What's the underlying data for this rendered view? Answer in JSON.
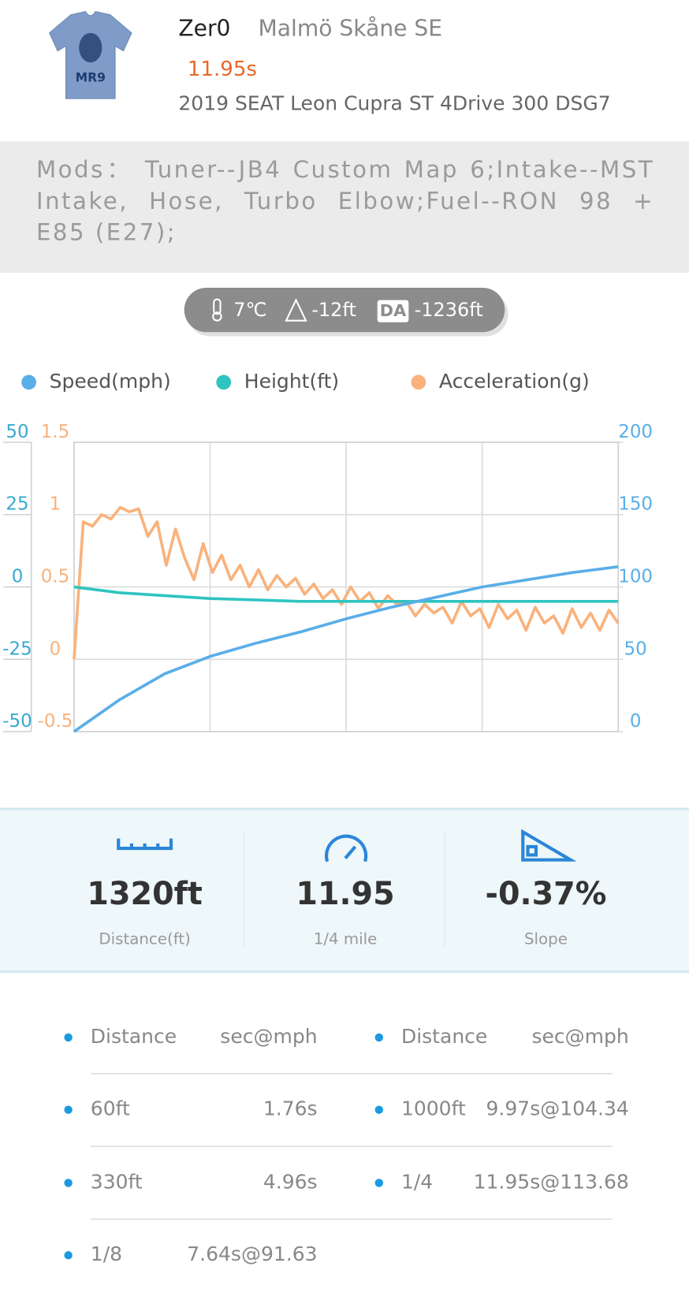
{
  "header": {
    "avatar_text": "MR9",
    "name": "Zer0",
    "location": "Malmö Skåne SE",
    "time": "11.95s",
    "car": "2019 SEAT Leon Cupra ST 4Drive 300 DSG7"
  },
  "mods": "Mods：  Tuner--JB4 Custom Map 6;Intake--MST Intake, Hose, Turbo Elbow;Fuel--RON 98 + E85 (E27);",
  "conditions": {
    "temperature": "7℃",
    "altitude": "-12ft",
    "da_label": "DA",
    "density_altitude": "-1236ft"
  },
  "chart_data": {
    "type": "line",
    "series": [
      {
        "name": "Speed(mph)",
        "color": "#5aaee8",
        "axis": "y2",
        "values": [
          0,
          22,
          40,
          52,
          61,
          69,
          78,
          86,
          93,
          100,
          105,
          110,
          114
        ]
      },
      {
        "name": "Height(ft)",
        "color": "#2ec4c0",
        "axis": "y3",
        "values": [
          0,
          -2,
          -3,
          -4,
          -4.5,
          -5,
          -5,
          -5,
          -5,
          -5,
          -5,
          -5,
          -5
        ]
      },
      {
        "name": "Acceleration(g)",
        "color": "#f9b27c",
        "axis": "y",
        "values": [
          0,
          0.95,
          0.92,
          1.0,
          0.97,
          1.05,
          1.02,
          1.04,
          0.85,
          0.95,
          0.65,
          0.9,
          0.7,
          0.55,
          0.8,
          0.6,
          0.72,
          0.55,
          0.65,
          0.5,
          0.62,
          0.48,
          0.58,
          0.5,
          0.56,
          0.45,
          0.52,
          0.42,
          0.48,
          0.38,
          0.5,
          0.4,
          0.46,
          0.35,
          0.44,
          0.38,
          0.4,
          0.3,
          0.38,
          0.32,
          0.36,
          0.25,
          0.4,
          0.3,
          0.35,
          0.22,
          0.38,
          0.28,
          0.34,
          0.2,
          0.36,
          0.25,
          0.3,
          0.18,
          0.35,
          0.22,
          0.32,
          0.2,
          0.34,
          0.25
        ]
      }
    ],
    "ylim": [
      -0.5,
      1.5
    ],
    "yticks": [
      -0.5,
      0,
      0.5,
      1,
      1.5
    ],
    "y2lim": [
      0,
      200
    ],
    "y2ticks": [
      0,
      50,
      100,
      150,
      200
    ],
    "y3lim": [
      -50,
      50
    ],
    "y3ticks": [
      -50,
      -25,
      0,
      25,
      50
    ],
    "grid": true
  },
  "stats": [
    {
      "value": "1320ft",
      "label": "Distance(ft)"
    },
    {
      "value": "11.95",
      "label": "1/4 mile"
    },
    {
      "value": "-0.37%",
      "label": "Slope"
    }
  ],
  "table": {
    "headers": [
      "Distance",
      "sec@mph",
      "Distance",
      "sec@mph"
    ],
    "rows": [
      [
        "60ft",
        "1.76s",
        "1000ft",
        "9.97s@104.34"
      ],
      [
        "330ft",
        "4.96s",
        "1/4",
        "11.95s@113.68"
      ],
      [
        "1/8",
        "7.64s@91.63"
      ]
    ]
  }
}
